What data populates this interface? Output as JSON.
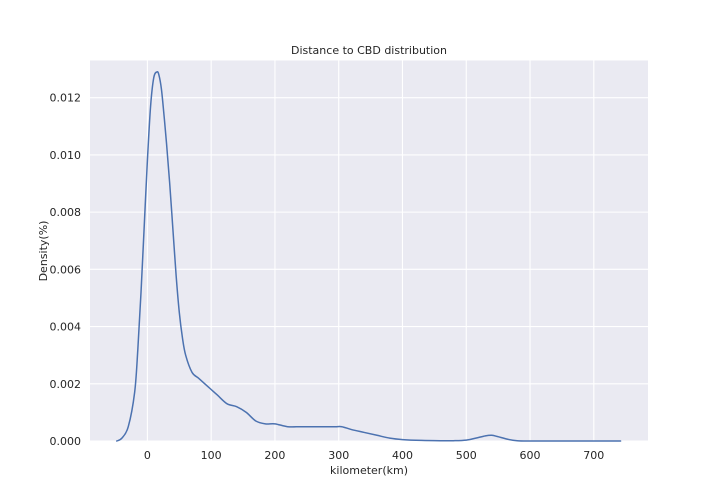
{
  "chart_data": {
    "type": "line",
    "title": "Distance to CBD distribution",
    "xlabel": "kilometer(km)",
    "ylabel": "Density(%)",
    "xlim": [
      -90,
      785
    ],
    "ylim": [
      0,
      0.0133
    ],
    "xticks": [
      0,
      100,
      200,
      300,
      400,
      500,
      600,
      700
    ],
    "xtick_labels": [
      "0",
      "100",
      "200",
      "300",
      "400",
      "500",
      "600",
      "700"
    ],
    "yticks": [
      0,
      0.002,
      0.004,
      0.006,
      0.008,
      0.01,
      0.012
    ],
    "ytick_labels": [
      "0.000",
      "0.002",
      "0.004",
      "0.006",
      "0.008",
      "0.010",
      "0.012"
    ],
    "grid": true,
    "line_color": "#4c72b0",
    "background_color": "#eaeaf2",
    "series": [
      {
        "x": [
          -48,
          -40,
          -30,
          -20,
          -15,
          -10,
          -5,
          0,
          5,
          10,
          15,
          18,
          22,
          26,
          30,
          35,
          40,
          45,
          50,
          55,
          60,
          70,
          80,
          90,
          100,
          110,
          125,
          140,
          155,
          170,
          185,
          200,
          220,
          240,
          260,
          280,
          295,
          305,
          320,
          340,
          360,
          380,
          400,
          430,
          460,
          480,
          500,
          515,
          530,
          540,
          550,
          565,
          580,
          600,
          650,
          700,
          742
        ],
        "y": [
          0.0,
          0.0001,
          0.0005,
          0.0017,
          0.0032,
          0.0052,
          0.0075,
          0.0098,
          0.0117,
          0.0127,
          0.0129,
          0.0128,
          0.0123,
          0.0114,
          0.0104,
          0.009,
          0.0074,
          0.0058,
          0.0045,
          0.0036,
          0.003,
          0.0024,
          0.0022,
          0.002,
          0.0018,
          0.0016,
          0.0013,
          0.0012,
          0.001,
          0.0007,
          0.0006,
          0.0006,
          0.0005,
          0.0005,
          0.0005,
          0.0005,
          0.0005,
          0.0005,
          0.0004,
          0.0003,
          0.0002,
          0.0001,
          5e-05,
          2e-05,
          1e-05,
          1e-05,
          3e-05,
          0.0001,
          0.00018,
          0.0002,
          0.00015,
          6e-05,
          1e-05,
          0.0,
          0.0,
          0.0,
          0.0
        ]
      }
    ]
  }
}
